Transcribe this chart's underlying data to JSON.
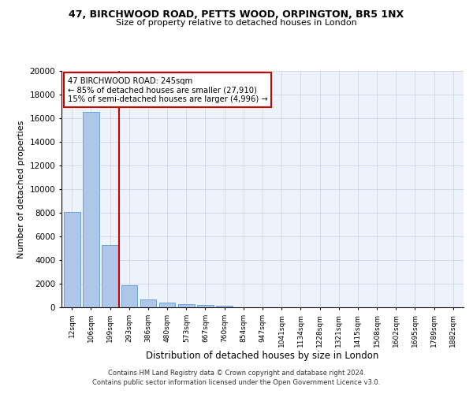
{
  "title1": "47, BIRCHWOOD ROAD, PETTS WOOD, ORPINGTON, BR5 1NX",
  "title2": "Size of property relative to detached houses in London",
  "xlabel": "Distribution of detached houses by size in London",
  "ylabel": "Number of detached properties",
  "annotation_line1": "47 BIRCHWOOD ROAD: 245sqm",
  "annotation_line2": "← 85% of detached houses are smaller (27,910)",
  "annotation_line3": "15% of semi-detached houses are larger (4,996) →",
  "bar_color": "#aec6e8",
  "bar_edge_color": "#5b9bd5",
  "vline_color": "#cc0000",
  "annotation_box_color": "#cc0000",
  "grid_color": "#d0d8e8",
  "bg_color": "#eef2fb",
  "categories": [
    "12sqm",
    "106sqm",
    "199sqm",
    "293sqm",
    "386sqm",
    "480sqm",
    "573sqm",
    "667sqm",
    "760sqm",
    "854sqm",
    "947sqm",
    "1041sqm",
    "1134sqm",
    "1228sqm",
    "1321sqm",
    "1415sqm",
    "1508sqm",
    "1602sqm",
    "1695sqm",
    "1789sqm",
    "1882sqm"
  ],
  "values": [
    8100,
    16500,
    5300,
    1850,
    700,
    370,
    280,
    200,
    160,
    0,
    0,
    0,
    0,
    0,
    0,
    0,
    0,
    0,
    0,
    0,
    0
  ],
  "ylim": [
    0,
    20000
  ],
  "yticks": [
    0,
    2000,
    4000,
    6000,
    8000,
    10000,
    12000,
    14000,
    16000,
    18000,
    20000
  ],
  "footer1": "Contains HM Land Registry data © Crown copyright and database right 2024.",
  "footer2": "Contains public sector information licensed under the Open Government Licence v3.0.",
  "vline_x_index": 2.47
}
